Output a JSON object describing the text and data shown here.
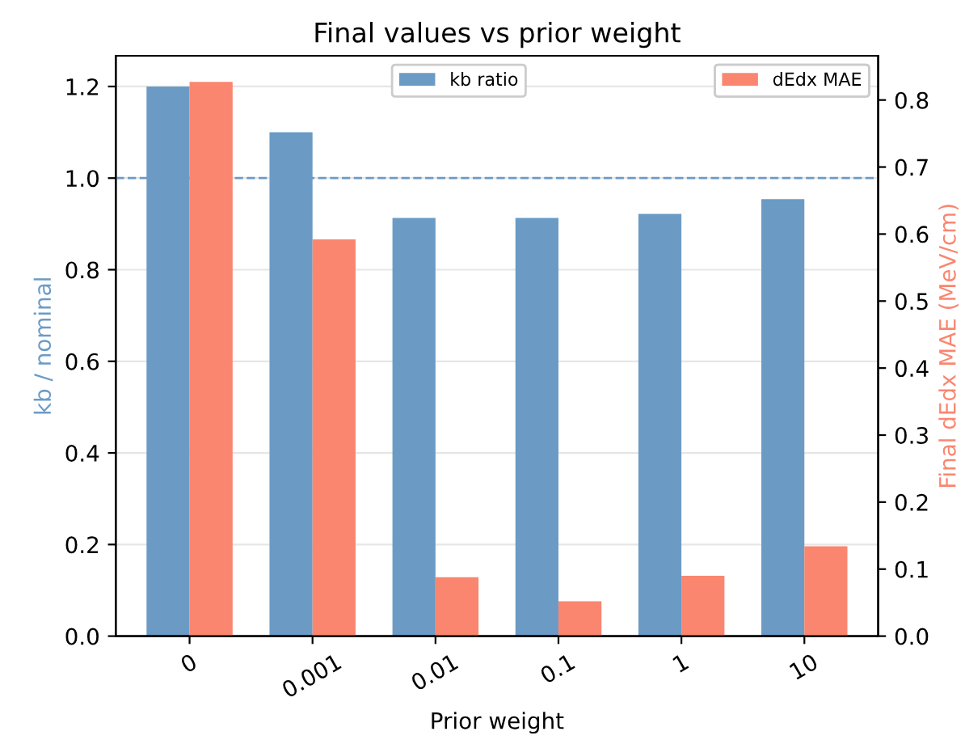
{
  "chart_data": {
    "type": "bar",
    "title": "Final values vs prior weight",
    "xlabel": "Prior weight",
    "ylabel": "kb / nominal",
    "y2label": "Final dEdx MAE (MeV/cm)",
    "categories": [
      "0",
      "0.001",
      "0.01",
      "0.1",
      "1",
      "10"
    ],
    "series": [
      {
        "name": "kb ratio",
        "color": "#6b9bc5",
        "values": [
          1.2,
          1.1,
          0.913,
          0.913,
          0.922,
          0.954
        ]
      },
      {
        "name": "dEdx MAE",
        "color": "#fa8670",
        "axis": "y2",
        "values": [
          0.827,
          0.592,
          0.088,
          0.052,
          0.09,
          0.134
        ]
      }
    ],
    "ylim": [
      0,
      1.267
    ],
    "yticks": [
      {
        "value": 0,
        "label": "0.0"
      },
      0.2,
      0.4,
      0.6,
      0.8,
      {
        "value": 1,
        "label": "1.0"
      },
      1.2
    ],
    "y2lim": [
      0,
      0.866
    ],
    "y2ticks": [
      {
        "value": 0,
        "label": "0.0"
      },
      0.1,
      0.2,
      0.3,
      0.4,
      0.5,
      0.6,
      0.7,
      0.8
    ],
    "ref_lines": [
      {
        "axis": "y",
        "value": 1.0,
        "color": "#6b9bc5",
        "line_style": "dashed"
      }
    ],
    "grid": "y",
    "legend": "top"
  }
}
